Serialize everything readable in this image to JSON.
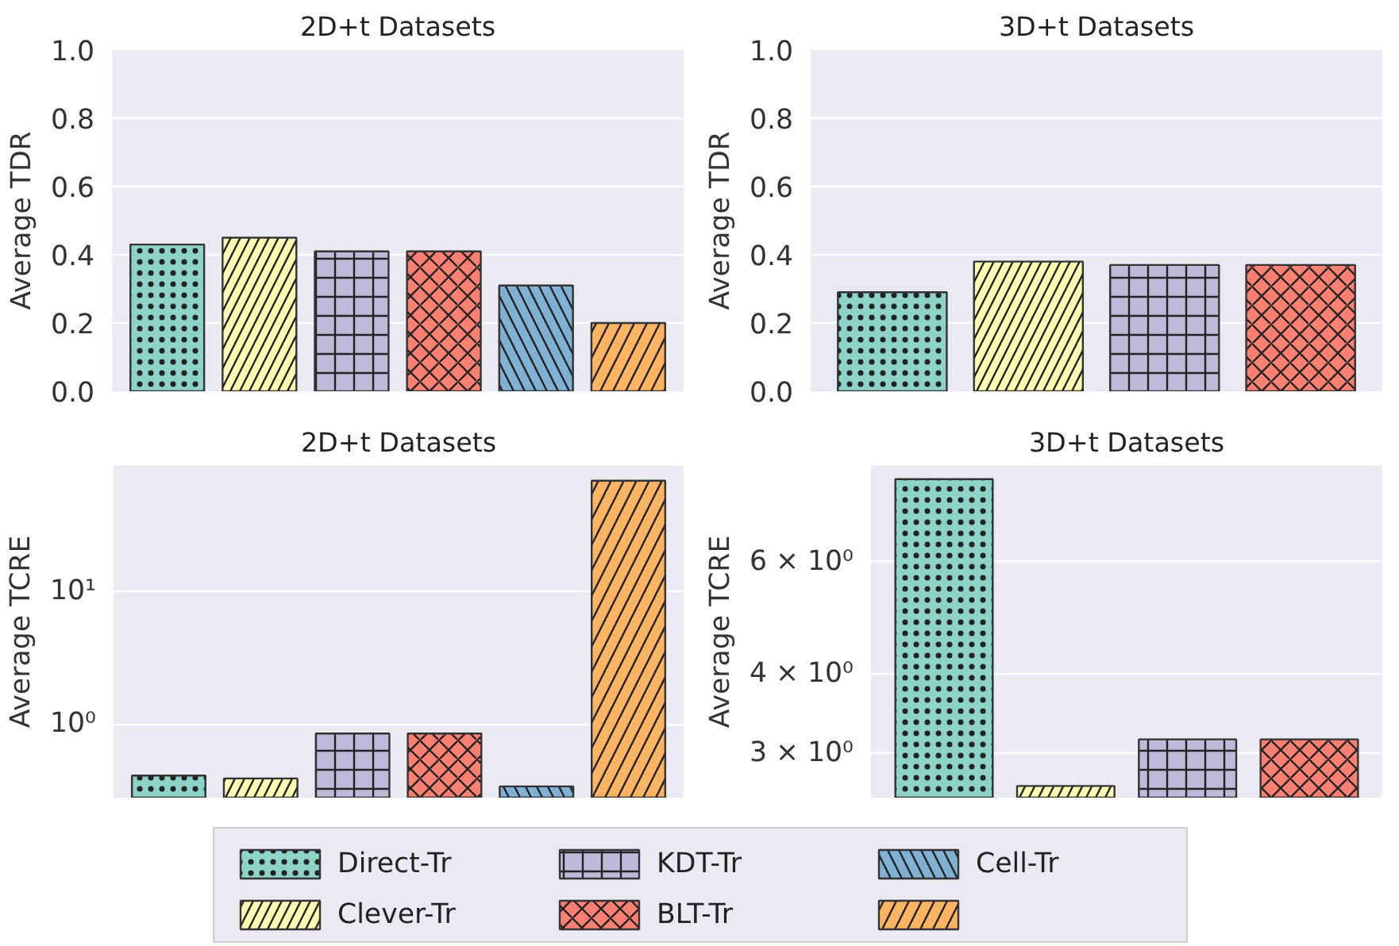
{
  "chart_data": [
    {
      "type": "bar",
      "title": "2D+t Datasets",
      "ylabel": "Average TDR",
      "categories": [
        null,
        null,
        null,
        null,
        null,
        null
      ],
      "ylim": [
        0,
        1.0
      ],
      "yticks": [
        {
          "value": 0,
          "label": "0.0"
        },
        0.2,
        0.4,
        0.6,
        0.8,
        {
          "value": 1,
          "label": "1.0"
        }
      ],
      "grid": "y",
      "legend": "bottom",
      "series": [
        {
          "name": "Direct-Tr",
          "color": "#8dd3c7",
          "values": [
            0.43,
            null,
            null,
            null,
            null,
            null
          ]
        },
        {
          "name": "Clever-Tr",
          "color": "#ffffb3",
          "values": [
            null,
            0.45,
            null,
            null,
            null,
            null
          ]
        },
        {
          "name": "KDT-Tr",
          "color": "#bebada",
          "values": [
            null,
            null,
            0.41,
            null,
            null,
            null
          ]
        },
        {
          "name": "BLT-Tr",
          "color": "#fb8072",
          "values": [
            null,
            null,
            null,
            0.41,
            null,
            null
          ]
        },
        {
          "name": "Cell-Tr",
          "color": "#80b1d3",
          "values": [
            null,
            null,
            null,
            null,
            0.31,
            null
          ]
        },
        {
          "color": "#fdb462",
          "values": [
            null,
            null,
            null,
            null,
            null,
            0.2
          ]
        }
      ]
    },
    {
      "type": "bar",
      "title": "3D+t Datasets",
      "ylabel": "Average TDR",
      "categories": [
        null,
        null,
        null,
        null
      ],
      "ylim": [
        0,
        1.0
      ],
      "yticks": [
        {
          "value": 0,
          "label": "0.0"
        },
        0.2,
        0.4,
        0.6,
        0.8,
        {
          "value": 1,
          "label": "1.0"
        }
      ],
      "grid": "y",
      "series": [
        {
          "name": "Direct-Tr",
          "color": "#8dd3c7",
          "values": [
            0.29,
            null,
            null,
            null
          ]
        },
        {
          "name": "Clever-Tr",
          "color": "#ffffb3",
          "values": [
            null,
            0.38,
            null,
            null
          ]
        },
        {
          "name": "KDT-Tr",
          "color": "#bebada",
          "values": [
            null,
            null,
            0.37,
            null
          ]
        },
        {
          "name": "BLT-Tr",
          "color": "#fb8072",
          "values": [
            null,
            null,
            null,
            0.37
          ]
        }
      ]
    },
    {
      "type": "bar",
      "title": "2D+t Datasets",
      "ylabel": "Average TCRE",
      "categories": [
        null,
        null,
        null,
        null,
        null,
        null
      ],
      "log": "y",
      "ylim": [
        0.28,
        88
      ],
      "yticks": [
        {
          "value": 1,
          "label": "10⁰"
        },
        {
          "value": 10,
          "label": "10¹"
        }
      ],
      "grid": "y",
      "series": [
        {
          "name": "Direct-Tr",
          "color": "#8dd3c7",
          "values": [
            0.41,
            null,
            null,
            null,
            null,
            null
          ]
        },
        {
          "name": "Clever-Tr",
          "color": "#ffffb3",
          "values": [
            null,
            0.39,
            null,
            null,
            null,
            null
          ]
        },
        {
          "name": "KDT-Tr",
          "color": "#bebada",
          "values": [
            null,
            null,
            0.85,
            null,
            null,
            null
          ]
        },
        {
          "name": "BLT-Tr",
          "color": "#fb8072",
          "values": [
            null,
            null,
            null,
            0.85,
            null,
            null
          ]
        },
        {
          "name": "Cell-Tr",
          "color": "#80b1d3",
          "values": [
            null,
            null,
            null,
            null,
            0.34,
            null
          ]
        },
        {
          "color": "#fdb462",
          "values": [
            null,
            null,
            null,
            null,
            null,
            68
          ]
        }
      ]
    },
    {
      "type": "bar",
      "title": "3D+t Datasets",
      "ylabel": "Average TCRE",
      "categories": [
        null,
        null,
        null,
        null
      ],
      "log": "y",
      "ylim": [
        2.55,
        8.5
      ],
      "yticks": [
        {
          "value": 3,
          "label": "3 × 10⁰"
        },
        {
          "value": 4,
          "label": "4 × 10⁰"
        },
        {
          "value": 6,
          "label": "6 × 10⁰"
        }
      ],
      "grid": "y",
      "series": [
        {
          "name": "Direct-Tr",
          "color": "#8dd3c7",
          "values": [
            8.1,
            null,
            null,
            null
          ]
        },
        {
          "name": "Clever-Tr",
          "color": "#ffffb3",
          "values": [
            null,
            2.66,
            null,
            null
          ]
        },
        {
          "name": "KDT-Tr",
          "color": "#bebada",
          "values": [
            null,
            null,
            3.15,
            null
          ]
        },
        {
          "name": "BLT-Tr",
          "color": "#fb8072",
          "values": [
            null,
            null,
            null,
            3.15
          ]
        }
      ]
    }
  ]
}
